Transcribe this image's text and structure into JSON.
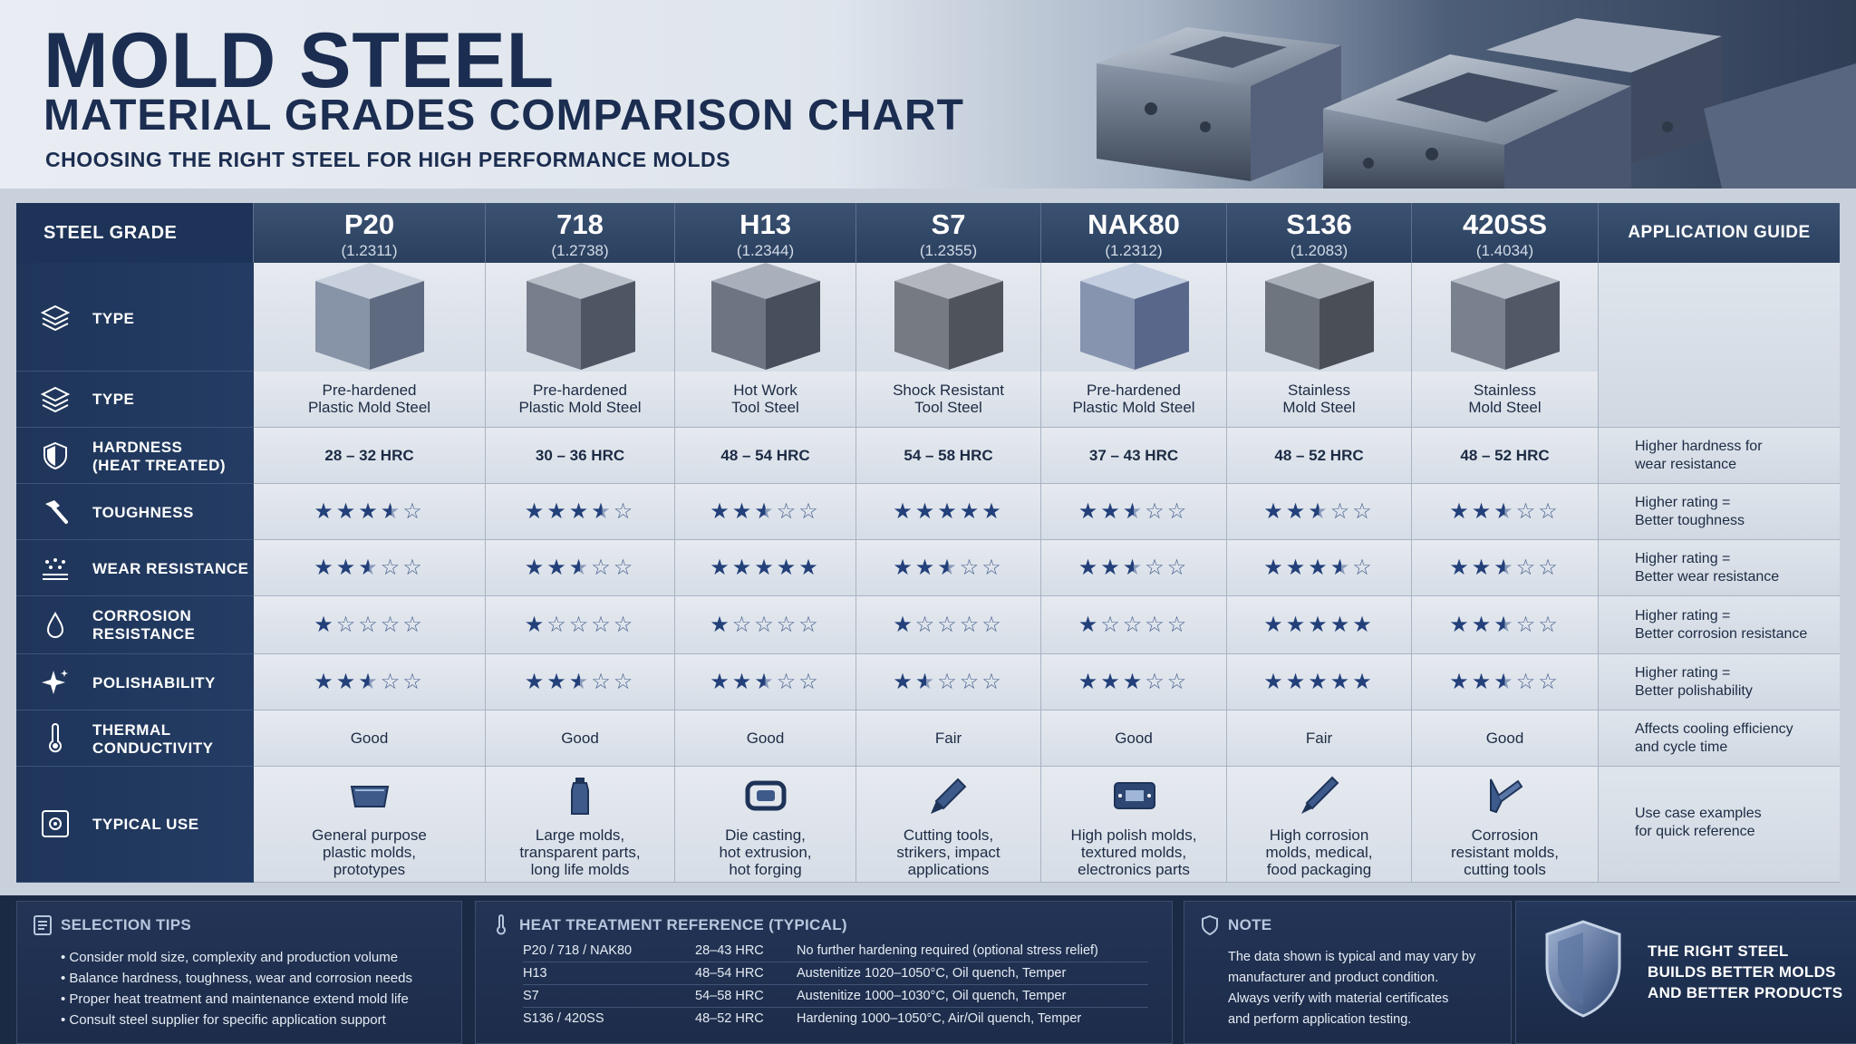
{
  "header": {
    "title": "MOLD STEEL",
    "subtitle": "MATERIAL GRADES COMPARISON CHART",
    "tagline": "CHOOSING THE RIGHT STEEL FOR HIGH PERFORMANCE MOLDS"
  },
  "table": {
    "corner_label": "STEEL GRADE",
    "application_label": "APPLICATION GUIDE",
    "grades": [
      {
        "name": "P20",
        "code": "(1.2311)"
      },
      {
        "name": "718",
        "code": "(1.2738)"
      },
      {
        "name": "H13",
        "code": "(1.2344)"
      },
      {
        "name": "S7",
        "code": "(1.2355)"
      },
      {
        "name": "NAK80",
        "code": "(1.2312)"
      },
      {
        "name": "S136",
        "code": "(1.2083)"
      },
      {
        "name": "420SS",
        "code": "(1.4034)"
      }
    ],
    "row_labels": {
      "type_a": "TYPE",
      "type_b": "TYPE",
      "hardness_1": "HARDNESS",
      "hardness_2": "(HEAT TREATED)",
      "toughness": "TOUGHNESS",
      "wear": "WEAR RESISTANCE",
      "corrosion_1": "CORROSION",
      "corrosion_2": "RESISTANCE",
      "polish": "POLISHABILITY",
      "thermal_1": "THERMAL",
      "thermal_2": "CONDUCTIVITY",
      "use": "TYPICAL USE"
    },
    "types": [
      [
        "Pre-hardened",
        "Plastic Mold Steel"
      ],
      [
        "Pre-hardened",
        "Plastic Mold Steel"
      ],
      [
        "Hot Work",
        "Tool Steel"
      ],
      [
        "Shock Resistant",
        "Tool Steel"
      ],
      [
        "Pre-hardened",
        "Plastic Mold Steel"
      ],
      [
        "Stainless",
        "Mold Steel"
      ],
      [
        "Stainless",
        "Mold Steel"
      ]
    ],
    "hardness": [
      "28 – 32 HRC",
      "30 – 36 HRC",
      "48 – 54 HRC",
      "54 – 58 HRC",
      "37 – 43 HRC",
      "48 – 52 HRC",
      "48 – 52 HRC"
    ],
    "toughness": [
      3.5,
      3.5,
      2.5,
      5,
      2.5,
      2.5,
      2.5
    ],
    "wear": [
      2.5,
      2.5,
      5,
      2.5,
      2.5,
      3.5,
      2.5
    ],
    "corrosion": [
      1,
      1,
      1,
      1,
      1,
      5,
      2.5
    ],
    "polish": [
      2.5,
      2.5,
      2.5,
      1.5,
      3,
      5,
      2.5
    ],
    "thermal": [
      "Good",
      "Good",
      "Good",
      "Fair",
      "Good",
      "Fair",
      "Good"
    ],
    "uses": [
      [
        "General purpose",
        "plastic molds,",
        "prototypes"
      ],
      [
        "Large molds,",
        "transparent parts,",
        "long life molds"
      ],
      [
        "Die casting,",
        "hot extrusion,",
        "hot forging"
      ],
      [
        "Cutting tools,",
        "strikers, impact",
        "applications"
      ],
      [
        "High polish molds,",
        "textured molds,",
        "electronics parts"
      ],
      [
        "High corrosion",
        "molds, medical,",
        "food packaging"
      ],
      [
        "Corrosion",
        "resistant molds,",
        "cutting tools"
      ]
    ],
    "use_icons": [
      "tray-icon",
      "bottle-icon",
      "die-cast-part-icon",
      "chisel-icon",
      "circuit-board-icon",
      "scalpel-icon",
      "cutting-tool-icon"
    ],
    "guide": {
      "hardness": [
        "Higher hardness for",
        "wear resistance"
      ],
      "toughness": [
        "Higher rating =",
        "Better toughness"
      ],
      "wear": [
        "Higher rating =",
        "Better wear resistance"
      ],
      "corrosion": [
        "Higher rating =",
        "Better corrosion resistance"
      ],
      "polish": [
        "Higher rating =",
        "Better polishability"
      ],
      "thermal": [
        "Affects cooling efficiency",
        "and cycle time"
      ],
      "use": [
        "Use case examples",
        "for quick reference"
      ]
    }
  },
  "footer": {
    "tips_title": "SELECTION TIPS",
    "tips": [
      "• Consider mold size, complexity and production volume",
      "• Balance hardness, toughness, wear and corrosion needs",
      "• Proper heat treatment and maintenance extend mold life",
      "• Consult steel supplier for specific application support"
    ],
    "heat_title": "HEAT TREATMENT REFERENCE (TYPICAL)",
    "heat_rows": [
      [
        "P20 / 718 / NAK80",
        "28–43 HRC",
        "No further  hardening required (optional stress relief)"
      ],
      [
        "H13",
        "48–54 HRC",
        "Austenitize 1020–1050°C, Oil quench, Temper"
      ],
      [
        "S7",
        "54–58 HRC",
        "Austenitize 1000–1030°C, Oil quench, Temper"
      ],
      [
        "S136 / 420SS",
        "48–52 HRC",
        "Hardening 1000–1050°C, Air/Oil quench, Temper"
      ]
    ],
    "note_title": "NOTE",
    "note_lines": [
      "The data shown is typical and may vary by",
      "manufacturer and product condition.",
      "Always verify with material certificates",
      "and perform application testing."
    ],
    "slogan": [
      "THE RIGHT STEEL",
      "BUILDS BETTER MOLDS",
      "AND BETTER PRODUCTS"
    ]
  },
  "colors": {
    "navy": "#1d3357",
    "star": "#23407a",
    "cell_bg": "#e3e8ee"
  }
}
